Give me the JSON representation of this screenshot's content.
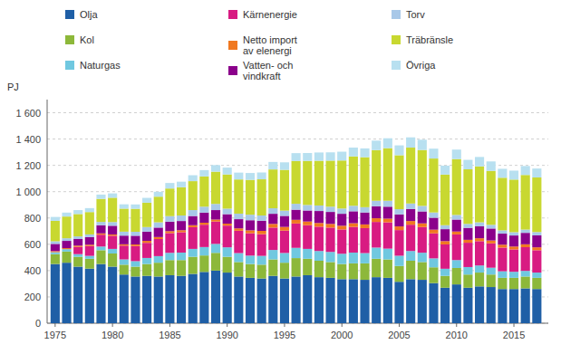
{
  "chart_data": {
    "type": "bar",
    "stacked": true,
    "grid": true,
    "legend": "top",
    "ylabel": "PJ",
    "x": [
      1975,
      1976,
      1977,
      1978,
      1979,
      1980,
      1981,
      1982,
      1983,
      1984,
      1985,
      1986,
      1987,
      1988,
      1989,
      1990,
      1991,
      1992,
      1993,
      1994,
      1995,
      1996,
      1997,
      1998,
      1999,
      2000,
      2001,
      2002,
      2003,
      2004,
      2005,
      2006,
      2007,
      2008,
      2009,
      2010,
      2011,
      2012,
      2013,
      2014,
      2015,
      2016,
      2017
    ],
    "xlim": [
      1974.3,
      2018
    ],
    "xticks": [
      1975,
      1980,
      1985,
      1990,
      1995,
      2000,
      2005,
      2010,
      2015
    ],
    "ylim": [
      0,
      1700
    ],
    "yticks": [
      0,
      200,
      400,
      600,
      800,
      {
        "value": 1000,
        "label": "1 000"
      },
      {
        "value": 1200,
        "label": "1 200"
      },
      {
        "value": 1400,
        "label": "1 400"
      },
      {
        "value": 1600,
        "label": "1 600"
      }
    ],
    "series": [
      {
        "name": "Olja",
        "color": "#1F5FA6",
        "values": [
          450,
          460,
          430,
          415,
          450,
          430,
          370,
          355,
          360,
          355,
          365,
          360,
          375,
          390,
          400,
          385,
          355,
          345,
          340,
          360,
          340,
          355,
          365,
          350,
          345,
          335,
          335,
          330,
          350,
          345,
          315,
          335,
          330,
          305,
          270,
          295,
          270,
          280,
          275,
          260,
          260,
          265,
          260
        ]
      },
      {
        "name": "Kol",
        "color": "#8DB83A",
        "values": [
          75,
          85,
          75,
          75,
          105,
          100,
          75,
          75,
          90,
          105,
          115,
          120,
          130,
          125,
          135,
          120,
          110,
          105,
          105,
          125,
          120,
          140,
          125,
          125,
          120,
          115,
          120,
          125,
          140,
          140,
          120,
          140,
          135,
          120,
          90,
          125,
          100,
          105,
          95,
          85,
          85,
          90,
          85
        ]
      },
      {
        "name": "Naturgas",
        "color": "#70C8E0",
        "values": [
          15,
          18,
          20,
          22,
          28,
          35,
          40,
          42,
          46,
          50,
          55,
          57,
          60,
          64,
          68,
          72,
          68,
          64,
          67,
          72,
          74,
          78,
          75,
          74,
          77,
          78,
          82,
          78,
          85,
          82,
          78,
          74,
          71,
          68,
          54,
          60,
          57,
          54,
          52,
          50,
          46,
          43,
          40
        ]
      },
      {
        "name": "Kärnenergie",
        "color": "#D81B82",
        "values": [
          0,
          0,
          55,
          75,
          90,
          100,
          105,
          115,
          115,
          130,
          150,
          155,
          165,
          170,
          170,
          165,
          170,
          170,
          165,
          170,
          170,
          185,
          180,
          185,
          185,
          185,
          195,
          190,
          195,
          200,
          195,
          200,
          195,
          190,
          185,
          195,
          185,
          185,
          185,
          180,
          170,
          180,
          170
        ]
      },
      {
        "name": "Netto import\nav elenergi",
        "color": "#F07820",
        "values": [
          8,
          8,
          10,
          10,
          10,
          10,
          10,
          12,
          15,
          15,
          15,
          15,
          15,
          15,
          15,
          15,
          18,
          22,
          25,
          28,
          28,
          28,
          28,
          28,
          28,
          28,
          28,
          28,
          28,
          28,
          28,
          28,
          28,
          28,
          25,
          22,
          22,
          22,
          22,
          22,
          22,
          22,
          22
        ]
      },
      {
        "name": "Vatten- och\nvindkraft",
        "color": "#8B008B",
        "values": [
          55,
          55,
          50,
          58,
          62,
          66,
          66,
          66,
          70,
          72,
          72,
          70,
          70,
          77,
          72,
          72,
          70,
          77,
          77,
          77,
          84,
          77,
          84,
          91,
          91,
          91,
          91,
          91,
          91,
          91,
          91,
          91,
          91,
          91,
          91,
          91,
          91,
          91,
          91,
          84,
          84,
          87,
          91
        ]
      },
      {
        "name": "Torv",
        "color": "#A8C8E8",
        "values": [
          20,
          20,
          20,
          20,
          25,
          28,
          30,
          30,
          35,
          40,
          42,
          42,
          45,
          45,
          47,
          42,
          42,
          42,
          40,
          42,
          40,
          45,
          42,
          42,
          40,
          40,
          42,
          40,
          42,
          45,
          40,
          42,
          42,
          40,
          30,
          35,
          30,
          30,
          28,
          25,
          25,
          25,
          25
        ]
      },
      {
        "name": "Träbränsle",
        "color": "#C8D830",
        "values": [
          155,
          165,
          170,
          170,
          175,
          185,
          175,
          175,
          185,
          195,
          210,
          215,
          220,
          230,
          245,
          260,
          260,
          265,
          275,
          295,
          310,
          325,
          335,
          340,
          350,
          365,
          375,
          380,
          385,
          400,
          410,
          425,
          425,
          410,
          385,
          425,
          415,
          425,
          410,
          400,
          400,
          415,
          415
        ]
      },
      {
        "name": "Övriga",
        "color": "#B8E0F0",
        "values": [
          30,
          30,
          30,
          30,
          33,
          33,
          33,
          33,
          37,
          37,
          42,
          42,
          45,
          48,
          50,
          52,
          52,
          52,
          52,
          57,
          57,
          60,
          60,
          63,
          63,
          67,
          67,
          67,
          72,
          75,
          75,
          78,
          78,
          75,
          68,
          72,
          72,
          72,
          72,
          68,
          68,
          68,
          68
        ]
      }
    ]
  }
}
